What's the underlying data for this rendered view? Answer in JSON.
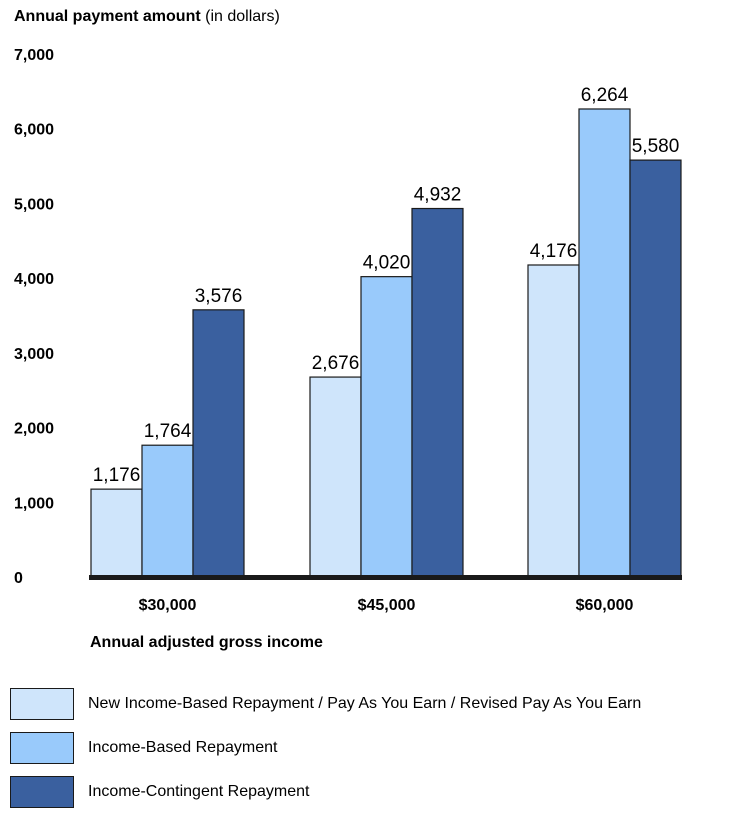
{
  "chart_data": {
    "type": "bar",
    "title": "",
    "ylabel_bold": "Annual payment amount",
    "ylabel_rest": " (in dollars)",
    "xlabel": "Annual adjusted gross income",
    "categories": [
      "$30,000",
      "$45,000",
      "$60,000"
    ],
    "ylim": [
      0,
      7000
    ],
    "yticks": [
      "0",
      "1,000",
      "2,000",
      "3,000",
      "4,000",
      "5,000",
      "6,000",
      "7,000"
    ],
    "ytick_values": [
      0,
      1000,
      2000,
      3000,
      4000,
      5000,
      6000,
      7000
    ],
    "grid": false,
    "legend_position": "bottom",
    "series": [
      {
        "name": "New Income-Based Repayment / Pay As You Earn / Revised Pay As You Earn",
        "color": "#cfe5fb",
        "values": [
          1176,
          2676,
          4176
        ],
        "labels": [
          "1,176",
          "2,676",
          "4,176"
        ]
      },
      {
        "name": "Income-Based Repayment",
        "color": "#99cafb",
        "values": [
          1764,
          4020,
          6264
        ],
        "labels": [
          "1,764",
          "4,020",
          "6,264"
        ]
      },
      {
        "name": "Income-Contingent Repayment",
        "color": "#3a609f",
        "values": [
          3576,
          4932,
          5580
        ],
        "labels": [
          "3,576",
          "4,932",
          "5,580"
        ]
      }
    ]
  }
}
